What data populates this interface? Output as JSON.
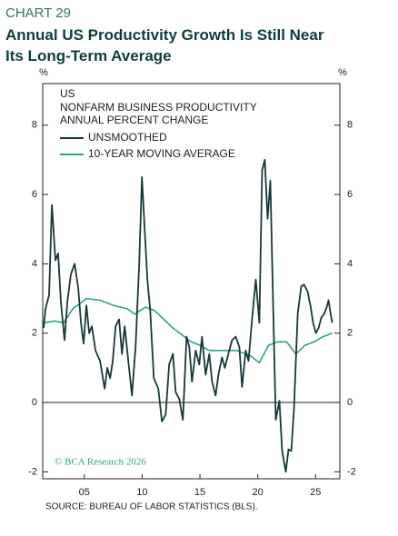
{
  "chart_data": {
    "type": "line",
    "chart_number": "CHART 29",
    "title": "Annual US Productivity Growth Is Still Near Its Long-Term Average",
    "y_label": "%",
    "y2_label": "%",
    "annotations": [
      "US",
      "NONFARM BUSINESS PRODUCTIVITY",
      "ANNUAL PERCENT CHANGE"
    ],
    "watermark": "© BCA Research 2026",
    "source": "SOURCE: BUREAU OF LABOR STATISTICS (BLS).",
    "xlim": [
      2001.4,
      2027.1
    ],
    "xticks": [
      {
        "value": 2005,
        "label": "05"
      },
      {
        "value": 2010,
        "label": "10"
      },
      {
        "value": 2015,
        "label": "15"
      },
      {
        "value": 2020,
        "label": "20"
      },
      {
        "value": 2025,
        "label": "25"
      }
    ],
    "ylim": [
      -2.2,
      9.2
    ],
    "yticks": [
      -2,
      0,
      2,
      4,
      6,
      8
    ],
    "y2lim": [
      -2.2,
      9.2
    ],
    "y2ticks": [
      -2,
      0,
      2,
      4,
      6,
      8
    ],
    "zero_line": true,
    "series": [
      {
        "name": "UNSMOOTHED",
        "color": "#163838",
        "x": [
          2001.48,
          2001.64,
          2001.95,
          2002.19,
          2002.5,
          2002.74,
          2002.97,
          2003.29,
          2003.53,
          2003.84,
          2004.16,
          2004.47,
          2004.71,
          2004.94,
          2005.18,
          2005.42,
          2005.65,
          2005.97,
          2006.36,
          2006.76,
          2006.99,
          2007.23,
          2007.46,
          2007.7,
          2008.01,
          2008.25,
          2008.49,
          2008.8,
          2009.12,
          2009.43,
          2009.75,
          2009.98,
          2010.22,
          2010.46,
          2010.69,
          2011.01,
          2011.4,
          2011.71,
          2012.03,
          2012.34,
          2012.66,
          2012.9,
          2013.21,
          2013.53,
          2013.84,
          2014.08,
          2014.31,
          2014.63,
          2014.94,
          2015.18,
          2015.49,
          2015.81,
          2016.05,
          2016.36,
          2016.6,
          2016.91,
          2017.15,
          2017.46,
          2017.78,
          2018.09,
          2018.41,
          2018.64,
          2018.96,
          2019.2,
          2019.51,
          2019.83,
          2020.14,
          2020.38,
          2020.61,
          2020.85,
          2021.09,
          2021.32,
          2021.56,
          2021.87,
          2022.11,
          2022.42,
          2022.66,
          2022.9,
          2023.13,
          2023.45,
          2023.76,
          2024.0,
          2024.31,
          2024.55,
          2024.79,
          2025.02,
          2025.26,
          2025.5,
          2025.73,
          2025.97,
          2026.12,
          2026.28,
          2026.44
        ],
        "values": [
          2.15,
          2.7,
          3.1,
          5.7,
          4.1,
          4.3,
          2.9,
          1.8,
          2.9,
          3.7,
          4.0,
          3.3,
          2.3,
          1.7,
          2.8,
          2.0,
          2.2,
          1.5,
          1.2,
          0.4,
          1.0,
          0.7,
          1.2,
          2.2,
          2.4,
          1.4,
          2.2,
          1.2,
          0.2,
          1.6,
          4.0,
          6.5,
          5.0,
          3.5,
          2.7,
          0.7,
          0.4,
          -0.55,
          -0.35,
          1.1,
          1.4,
          0.3,
          0.1,
          -0.5,
          1.9,
          1.6,
          0.6,
          1.5,
          1.1,
          1.9,
          0.8,
          1.4,
          0.6,
          0.2,
          0.8,
          1.3,
          1.0,
          1.4,
          1.8,
          1.9,
          1.6,
          0.45,
          1.5,
          1.2,
          2.4,
          3.55,
          2.3,
          6.7,
          7.0,
          5.3,
          6.4,
          2.9,
          -0.5,
          0.05,
          -1.4,
          -2.0,
          -1.35,
          -1.4,
          -0.2,
          2.55,
          3.35,
          3.4,
          3.2,
          2.8,
          2.3,
          2.0,
          2.15,
          2.45,
          2.55,
          2.75,
          2.95,
          2.6,
          2.3
        ]
      },
      {
        "name": "10-YEAR MOVING AVERAGE",
        "color": "#2aa585",
        "x": [
          2001.48,
          2002.42,
          2003.21,
          2004.0,
          2005.18,
          2006.36,
          2007.54,
          2008.72,
          2009.35,
          2010.3,
          2011.09,
          2011.87,
          2012.66,
          2013.45,
          2014.23,
          2015.02,
          2015.81,
          2016.99,
          2018.17,
          2019.35,
          2020.14,
          2020.93,
          2021.72,
          2022.5,
          2023.29,
          2024.08,
          2024.87,
          2025.65,
          2026.44
        ],
        "values": [
          2.3,
          2.35,
          2.3,
          2.7,
          3.0,
          2.95,
          2.8,
          2.7,
          2.55,
          2.75,
          2.65,
          2.4,
          2.15,
          1.95,
          1.75,
          1.65,
          1.5,
          1.5,
          1.5,
          1.35,
          1.15,
          1.65,
          1.75,
          1.75,
          1.4,
          1.65,
          1.75,
          1.9,
          2.0
        ]
      }
    ]
  }
}
